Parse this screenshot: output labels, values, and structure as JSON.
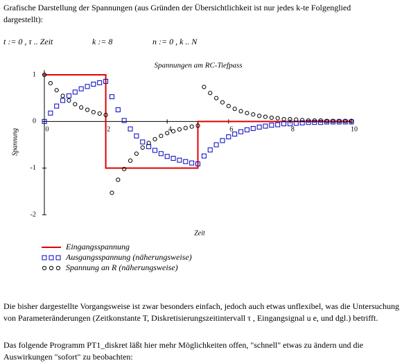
{
  "intro": "Grafische Darstellung der Spannungen (aus Gründen der Übersichtlichkeit ist nur jedes k-te Folgenglied dargestellt):",
  "definitions": [
    "t := 0 , τ .. Zeit",
    "k := 8",
    "n := 0 , k .. N"
  ],
  "paragraphs": [
    "Die bisher dargestellte Vorgangsweise ist zwar besonders einfach, jedoch auch etwas unflexibel, was die Untersuchung von Parameteränderungen (Zeitkonstante T, Diskretisierungszeitintervall τ , Eingangsignal u e, und dgl.) betrifft.",
    "Das folgende Programm PT1_diskret läßt hier mehr Möglichkeiten offen, \"schnell\" etwas zu ändern und die Auswirkungen \"sofort\" zu beobachten:"
  ],
  "chart_data": {
    "type": "line",
    "title": "Spannungen am RC-Tiefpass",
    "x_label": "Zeit",
    "y_label": "Spannung",
    "x": [
      0,
      0.2,
      0.4,
      0.6,
      0.8,
      1,
      1.2,
      1.4,
      1.6,
      1.8,
      2,
      2.2,
      2.4,
      2.6,
      2.8,
      3,
      3.2,
      3.4,
      3.6,
      3.8,
      4,
      4.2,
      4.4,
      4.6,
      4.8,
      5,
      5.2,
      5.4,
      5.6,
      5.8,
      6,
      6.2,
      6.4,
      6.6,
      6.8,
      7,
      7.2,
      7.4,
      7.6,
      7.8,
      8,
      8.2,
      8.4,
      8.6,
      8.8,
      9,
      9.2,
      9.4,
      9.6,
      9.8,
      10
    ],
    "series": [
      {
        "name": "Eingangsspannung",
        "color": "#e00000",
        "marker": "line",
        "x": [
          0,
          2,
          2,
          5,
          5,
          10
        ],
        "values": [
          1,
          1,
          -1,
          -1,
          0,
          0
        ]
      },
      {
        "name": "Ausgangsspannung (näherungsweise)",
        "color": "#0000c0",
        "marker": "square",
        "values": [
          0,
          0.18,
          0.33,
          0.45,
          0.55,
          0.63,
          0.7,
          0.75,
          0.8,
          0.83,
          0.86,
          0.53,
          0.25,
          0.02,
          -0.16,
          -0.31,
          -0.44,
          -0.54,
          -0.62,
          -0.69,
          -0.75,
          -0.79,
          -0.83,
          -0.86,
          -0.89,
          -0.91,
          -0.74,
          -0.61,
          -0.5,
          -0.41,
          -0.33,
          -0.27,
          -0.22,
          -0.18,
          -0.15,
          -0.12,
          -0.1,
          -0.08,
          -0.07,
          -0.05,
          -0.05,
          -0.04,
          -0.03,
          -0.02,
          -0.02,
          -0.02,
          -0.01,
          -0.01,
          -0.01,
          -0.01,
          -0.01
        ]
      },
      {
        "name": "Spannung an R (näherungsweise)",
        "color": "#000000",
        "marker": "circle",
        "values": [
          1,
          0.82,
          0.67,
          0.55,
          0.45,
          0.37,
          0.3,
          0.25,
          0.2,
          0.17,
          0.14,
          -1.53,
          -1.25,
          -1.02,
          -0.84,
          -0.69,
          -0.56,
          -0.46,
          -0.38,
          -0.31,
          -0.25,
          -0.21,
          -0.17,
          -0.14,
          -0.11,
          -0.09,
          0.74,
          0.61,
          0.5,
          0.41,
          0.33,
          0.27,
          0.22,
          0.18,
          0.15,
          0.12,
          0.1,
          0.08,
          0.07,
          0.05,
          0.05,
          0.04,
          0.03,
          0.02,
          0.02,
          0.02,
          0.01,
          0.01,
          0.01,
          0.01,
          0.01
        ]
      }
    ],
    "xlim": [
      0,
      10
    ],
    "ylim": [
      -2,
      1.1
    ],
    "xticks": [
      0,
      2,
      4,
      6,
      8,
      10
    ],
    "yticks": [
      -2,
      -1,
      0,
      1
    ]
  }
}
